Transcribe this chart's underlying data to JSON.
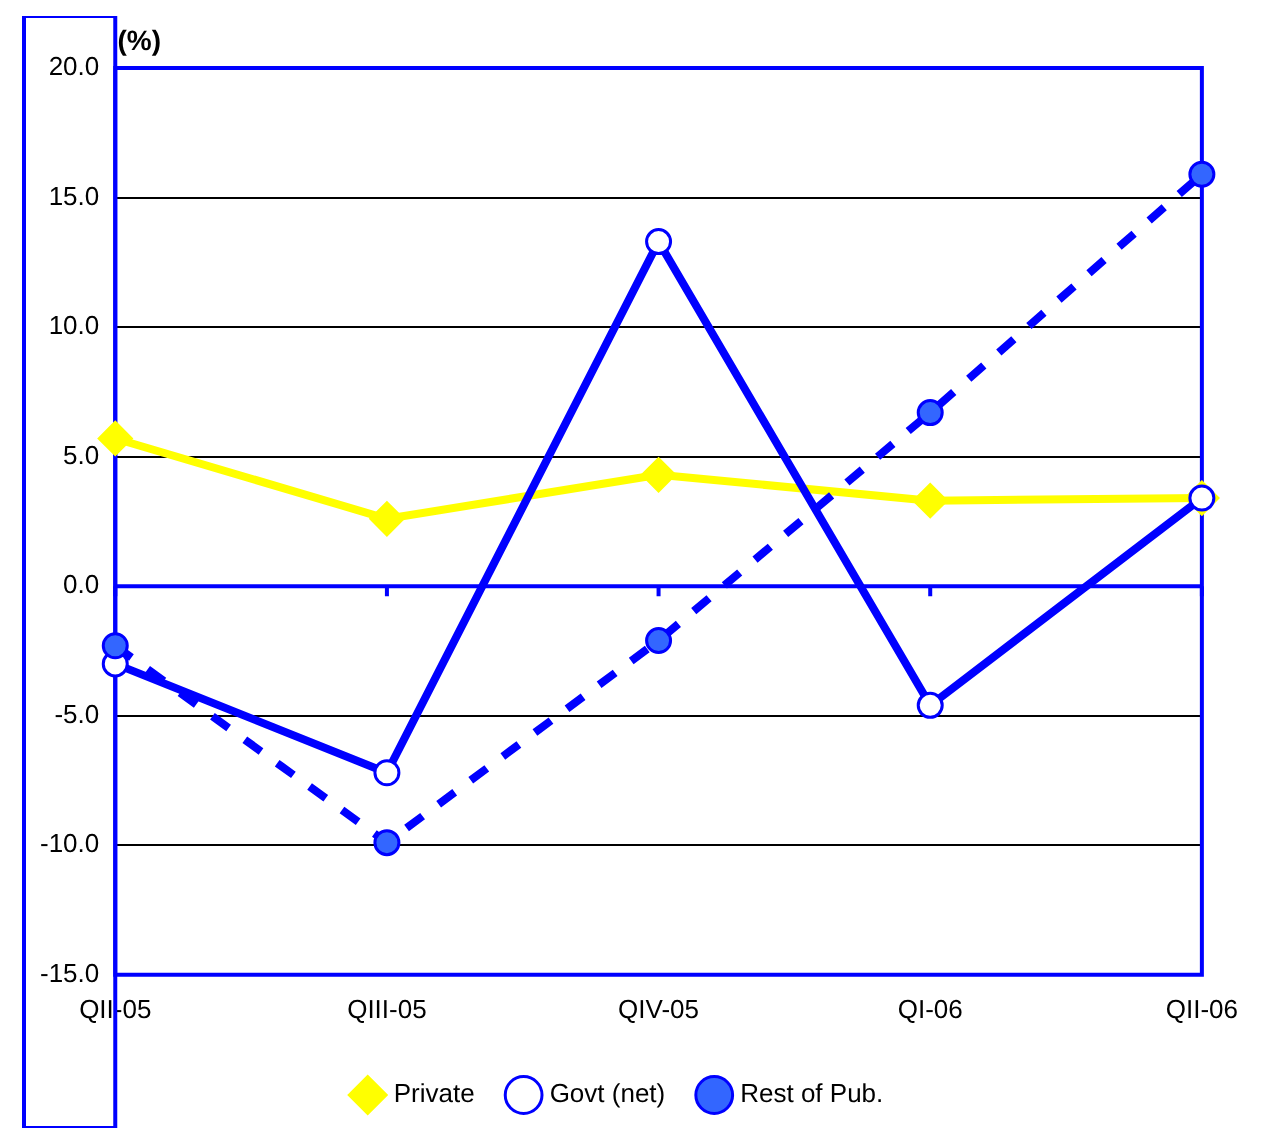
{
  "chart_data": {
    "type": "line",
    "ylabel": "(%)",
    "categories": [
      "QII-05",
      "QIII-05",
      "QIV-05",
      "QI-06",
      "QII-06"
    ],
    "series": [
      {
        "name": "Private",
        "color": "#ffff00",
        "marker": "diamond",
        "line_style": "solid",
        "values": [
          5.7,
          2.6,
          4.3,
          3.3,
          3.4
        ]
      },
      {
        "name": "Govt (net)",
        "color": "#0000ff",
        "marker": "circle",
        "line_style": "solid",
        "values": [
          -3.0,
          -7.2,
          13.3,
          -4.6,
          3.4
        ]
      },
      {
        "name": "Rest of Pub.",
        "color": "#0000ff",
        "marker": "circle",
        "line_style": "dashed",
        "values": [
          -2.3,
          -9.9,
          -2.1,
          6.7,
          15.9
        ]
      }
    ],
    "ylim": [
      -15,
      20
    ],
    "yticks": [
      {
        "value": -15,
        "label": "-15.0"
      },
      {
        "value": -10,
        "label": "-10.0"
      },
      {
        "value": -5,
        "label": "-5.0"
      },
      {
        "value": 0,
        "label": "0.0"
      },
      {
        "value": 5,
        "label": "5.0"
      },
      {
        "value": 10,
        "label": "10.0"
      },
      {
        "value": 15,
        "label": "15.0"
      },
      {
        "value": 20,
        "label": "20.0"
      }
    ],
    "ref_lines": [
      {
        "axis": "y",
        "value": 0,
        "color": "#0000ff"
      }
    ],
    "grid": "y",
    "legend": "bottom"
  }
}
